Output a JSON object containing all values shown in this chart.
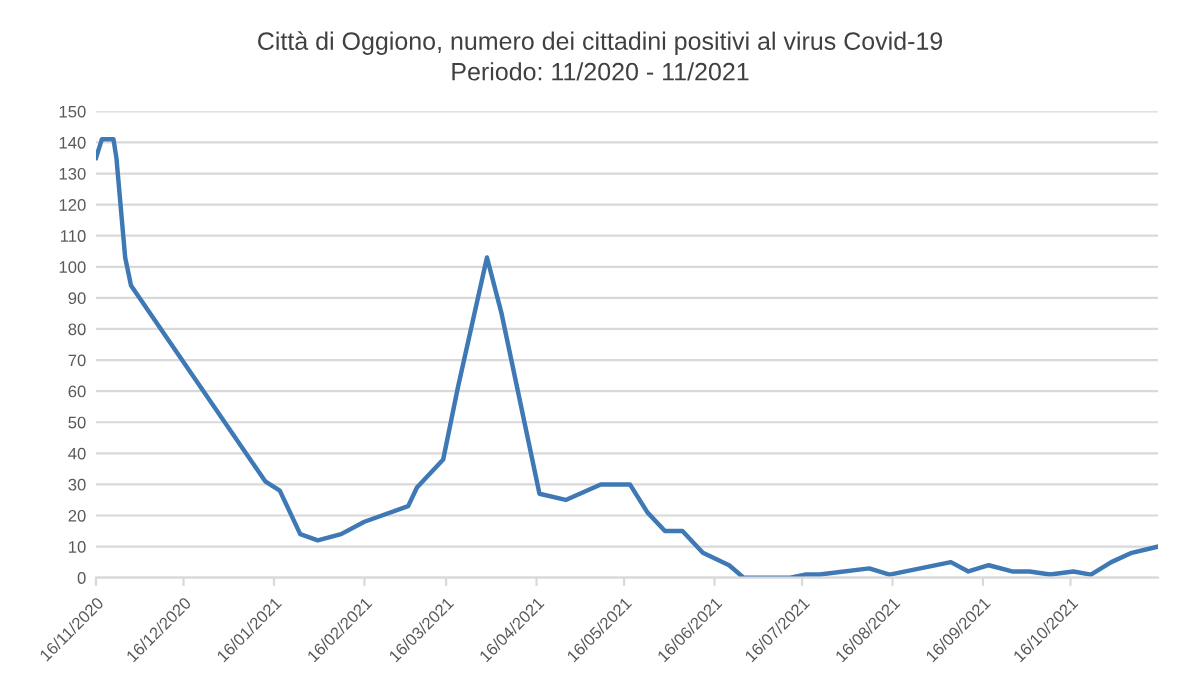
{
  "chart_data": {
    "type": "line",
    "title": "Città di Oggiono, numero dei cittadini positivi al virus Covid-19\nPeriodo: 11/2020 - 11/2021",
    "x": [
      "2020-11-16",
      "2020-11-18",
      "2020-11-22",
      "2020-11-23",
      "2020-11-26",
      "2020-11-28",
      "2021-01-13",
      "2021-01-18",
      "2021-01-25",
      "2021-01-31",
      "2021-02-08",
      "2021-02-16",
      "2021-03-03",
      "2021-03-06",
      "2021-03-15",
      "2021-03-20",
      "2021-03-30",
      "2021-04-04",
      "2021-04-17",
      "2021-04-26",
      "2021-05-08",
      "2021-05-18",
      "2021-05-24",
      "2021-05-30",
      "2021-06-05",
      "2021-06-12",
      "2021-06-21",
      "2021-06-26",
      "2021-07-12",
      "2021-07-17",
      "2021-07-22",
      "2021-08-08",
      "2021-08-15",
      "2021-09-05",
      "2021-09-11",
      "2021-09-18",
      "2021-09-26",
      "2021-10-02",
      "2021-10-09",
      "2021-10-17",
      "2021-10-23",
      "2021-10-30",
      "2021-11-06",
      "2021-11-15"
    ],
    "series": [
      {
        "color": "#3e79b5",
        "values": [
          135,
          141,
          141,
          135,
          103,
          94,
          31,
          28,
          14,
          12,
          14,
          18,
          23,
          29,
          38,
          61,
          103,
          85,
          27,
          25,
          30,
          30,
          21,
          15,
          15,
          8,
          4,
          0,
          0,
          1,
          1,
          3,
          1,
          5,
          2,
          4,
          2,
          2,
          1,
          2,
          1,
          5,
          8,
          10
        ]
      }
    ],
    "xlim": [
      "2020-11-16",
      "2021-11-15"
    ],
    "xticks": [
      {
        "value": "2020-11-16",
        "label": "16/11/2020"
      },
      {
        "value": "2020-12-16",
        "label": "16/12/2020"
      },
      {
        "value": "2021-01-16",
        "label": "16/01/2021"
      },
      {
        "value": "2021-02-16",
        "label": "16/02/2021"
      },
      {
        "value": "2021-03-16",
        "label": "16/03/2021"
      },
      {
        "value": "2021-04-16",
        "label": "16/04/2021"
      },
      {
        "value": "2021-05-16",
        "label": "16/05/2021"
      },
      {
        "value": "2021-06-16",
        "label": "16/06/2021"
      },
      {
        "value": "2021-07-16",
        "label": "16/07/2021"
      },
      {
        "value": "2021-08-16",
        "label": "16/08/2021"
      },
      {
        "value": "2021-09-16",
        "label": "16/09/2021"
      },
      {
        "value": "2021-10-16",
        "label": "16/10/2021"
      }
    ],
    "ylim": [
      0,
      150
    ],
    "yticks": [
      0,
      10,
      20,
      30,
      40,
      50,
      60,
      70,
      80,
      90,
      100,
      110,
      120,
      130,
      140,
      150
    ],
    "grid": "y",
    "legend": false,
    "marker": "none",
    "line_style": "solid"
  }
}
